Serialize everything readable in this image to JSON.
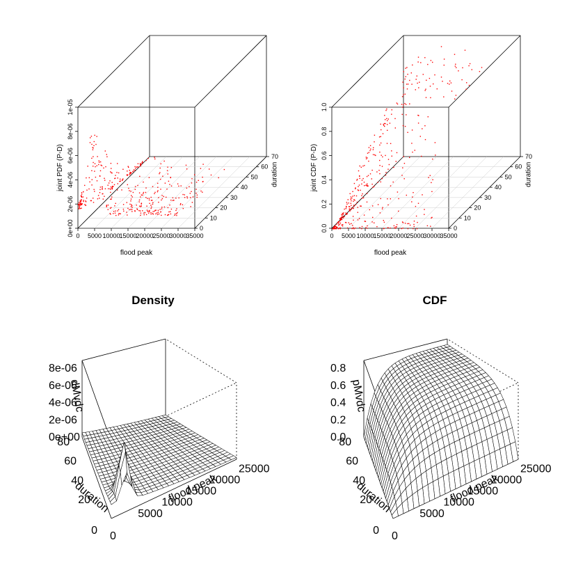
{
  "chart_data": [
    {
      "type": "scatter",
      "projection": "3d",
      "zlabel": "joint PDF (P-D)",
      "xlabel": "flood peak",
      "ylabel": "duration",
      "x_ticks": [
        "0",
        "5000",
        "10000",
        "15000",
        "20000",
        "25000",
        "30000",
        "35000"
      ],
      "y_ticks": [
        "0",
        "10",
        "20",
        "30",
        "40",
        "50",
        "60",
        "70"
      ],
      "z_ticks": [
        "0e+00",
        "2e-06",
        "4e-06",
        "6e-06",
        "8e-06",
        "1e-05"
      ],
      "xlim": [
        0,
        35000
      ],
      "ylim": [
        0,
        70
      ],
      "zlim": [
        0,
        1e-05
      ],
      "color": "#ff0000",
      "points_description": "joint density peaks near 8.5e-06 at flood peak ~3500, duration ~5, decaying with flood peak and duration"
    },
    {
      "type": "scatter",
      "projection": "3d",
      "zlabel": "joint CDF (P-D)",
      "xlabel": "flood peak",
      "ylabel": "duration",
      "x_ticks": [
        "0",
        "5000",
        "10000",
        "15000",
        "20000",
        "25000",
        "30000",
        "35000"
      ],
      "y_ticks": [
        "0",
        "10",
        "20",
        "30",
        "40",
        "50",
        "60",
        "70"
      ],
      "z_ticks": [
        "0.0",
        "0.2",
        "0.4",
        "0.6",
        "0.8",
        "1.0"
      ],
      "xlim": [
        0,
        35000
      ],
      "ylim": [
        0,
        70
      ],
      "zlim": [
        0,
        1
      ],
      "color": "#ff0000",
      "points_description": "joint CDF rises from 0 toward 1 with flood peak and duration"
    },
    {
      "type": "surface",
      "title": "Density",
      "xlabel": "flood peak",
      "ylabel": "duration",
      "zlabel": "dMvdc",
      "x_ticks": [
        "0",
        "5000",
        "10000",
        "15000",
        "20000",
        "25000"
      ],
      "y_ticks": [
        "0",
        "20",
        "40",
        "60",
        "80"
      ],
      "z_ticks": [
        "0e+00",
        "2e-06",
        "4e-06",
        "6e-06",
        "8e-06"
      ],
      "xlim": [
        0,
        25000
      ],
      "ylim": [
        0,
        80
      ],
      "zlim": [
        0,
        8e-06
      ]
    },
    {
      "type": "surface",
      "title": "CDF",
      "xlabel": "flood peak",
      "ylabel": "duration",
      "zlabel": "pMvdc",
      "x_ticks": [
        "0",
        "5000",
        "10000",
        "15000",
        "20000",
        "25000"
      ],
      "y_ticks": [
        "0",
        "20",
        "40",
        "60",
        "80"
      ],
      "z_ticks": [
        "0.0",
        "0.2",
        "0.4",
        "0.6",
        "0.8"
      ],
      "xlim": [
        0,
        25000
      ],
      "ylim": [
        0,
        80
      ],
      "zlim": [
        0,
        0.8
      ]
    }
  ]
}
